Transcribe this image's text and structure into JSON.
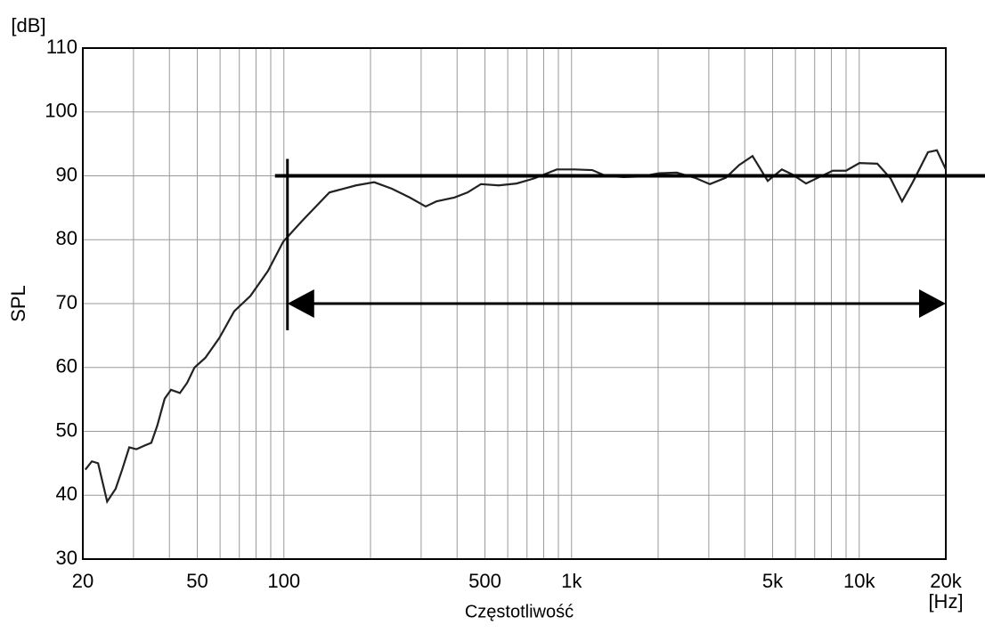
{
  "chart_data": {
    "type": "line",
    "y_unit": "[dB]",
    "y_label": "SPL",
    "x_label": "Częstotliwość",
    "x_unit": "[Hz]",
    "xscale": "log",
    "grid": true,
    "color": "#222222",
    "xlim": [
      20,
      20000
    ],
    "ylim": [
      30,
      110
    ],
    "xticks": [
      20,
      50,
      100,
      500,
      {
        "value": 1000,
        "label": "1k"
      },
      {
        "value": 5000,
        "label": "5k"
      },
      {
        "value": 10000,
        "label": "10k"
      },
      {
        "value": 20000,
        "label": "20k"
      }
    ],
    "xminor": [
      30,
      40,
      60,
      70,
      80,
      90,
      200,
      300,
      400,
      600,
      700,
      800,
      900,
      2000,
      3000,
      4000,
      6000,
      7000,
      8000,
      9000
    ],
    "yticks": [
      30,
      40,
      50,
      60,
      70,
      80,
      90,
      100,
      110
    ],
    "x": [
      20.4,
      21.5,
      22.6,
      24.3,
      26,
      27.4,
      29,
      30.7,
      32.9,
      34.6,
      36.3,
      38.5,
      40.5,
      43.5,
      46.1,
      48.9,
      53.3,
      59.6,
      67.2,
      76.5,
      88,
      99.5,
      116,
      144,
      178,
      206,
      237,
      274,
      311,
      339,
      391,
      435,
      484,
      558,
      644,
      742,
      888,
      1024,
      1180,
      1314,
      1514,
      1748,
      2014,
      2322,
      2680,
      3026,
      3436,
      3826,
      4257,
      4808,
      5383,
      5865,
      6532,
      7262,
      8092,
      8996,
      10020,
      11560,
      12850,
      14090,
      15350,
      17340,
      18620,
      20000
    ],
    "values": [
      44,
      45.3,
      45,
      39,
      41,
      44,
      47.5,
      47.2,
      47.8,
      48.2,
      50.9,
      55.1,
      56.5,
      56,
      57.6,
      60,
      61.5,
      64.6,
      68.8,
      71.2,
      75.1,
      79.7,
      83,
      87.4,
      88.5,
      89,
      88,
      86.6,
      85.2,
      86,
      86.6,
      87.4,
      88.7,
      88.5,
      88.8,
      89.6,
      91,
      91,
      90.9,
      90,
      89.8,
      89.9,
      90.4,
      90.5,
      89.7,
      88.7,
      89.7,
      91.7,
      93.1,
      89.2,
      91,
      90.2,
      88.8,
      89.8,
      90.8,
      90.8,
      92,
      91.9,
      89.6,
      86,
      89,
      93.7,
      94,
      91
    ],
    "annotations": {
      "reference_db": 90,
      "band_hz": [
        100,
        20000
      ],
      "arrow_db": 70
    }
  }
}
